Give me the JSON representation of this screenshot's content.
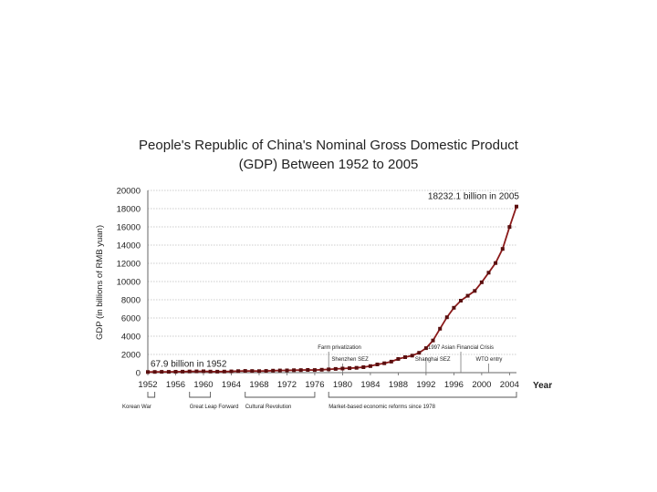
{
  "chart_data": {
    "type": "line",
    "title_line1": "People's Republic of China's Nominal Gross Domestic Product",
    "title_line2": "(GDP) Between 1952 to 2005",
    "xlabel": "Year",
    "ylabel": "GDP (in billions of RMB yuan)",
    "xlim": [
      1952,
      2005
    ],
    "ylim": [
      0,
      20000
    ],
    "x_ticks": [
      1952,
      1956,
      1960,
      1964,
      1968,
      1972,
      1976,
      1980,
      1984,
      1988,
      1992,
      1996,
      2000,
      2004
    ],
    "y_ticks": [
      0,
      2000,
      4000,
      6000,
      8000,
      10000,
      12000,
      14000,
      16000,
      18000,
      20000
    ],
    "grid": "horizontal",
    "series": [
      {
        "color": "#8b1a1a",
        "x": [
          1952,
          1953,
          1954,
          1955,
          1956,
          1957,
          1958,
          1959,
          1960,
          1961,
          1962,
          1963,
          1964,
          1965,
          1966,
          1967,
          1968,
          1969,
          1970,
          1971,
          1972,
          1973,
          1974,
          1975,
          1976,
          1977,
          1978,
          1979,
          1980,
          1981,
          1982,
          1983,
          1984,
          1985,
          1986,
          1987,
          1988,
          1989,
          1990,
          1991,
          1992,
          1993,
          1994,
          1995,
          1996,
          1997,
          1998,
          1999,
          2000,
          2001,
          2002,
          2003,
          2004,
          2005
        ],
        "y": [
          67.9,
          82,
          86,
          91,
          103,
          107,
          131,
          144,
          146,
          122,
          115,
          123,
          145,
          172,
          187,
          177,
          172,
          194,
          225,
          243,
          252,
          272,
          276,
          300,
          294,
          320,
          365,
          406,
          452,
          489,
          532,
          596,
          721,
          902,
          1028,
          1206,
          1504,
          1700,
          1867,
          2178,
          2692,
          3533,
          4820,
          6079,
          7118,
          7897,
          8440,
          8968,
          9921,
          10966,
          12033,
          13582,
          15988,
          18232.1
        ]
      }
    ],
    "annotations": [
      {
        "text": "67.9 billion in 1952",
        "x": 1952,
        "y": 67.9
      },
      {
        "text": "18232.1 billion in 2005",
        "x": 2005,
        "y": 18232.1
      }
    ],
    "events": [
      {
        "text": "Farm privatization",
        "x": 1978
      },
      {
        "text": "Shenzhen SEZ",
        "x": 1980
      },
      {
        "text": "Shanghai SEZ",
        "x": 1992
      },
      {
        "text": "1997 Asian Financial Crisis",
        "x": 1997
      },
      {
        "text": "WTO entry",
        "x": 2001
      }
    ],
    "periods": [
      {
        "text": "Korean War",
        "start": 1952,
        "end": 1953
      },
      {
        "text": "Great Leap Forward",
        "start": 1958,
        "end": 1961
      },
      {
        "text": "Cultural Revolution",
        "start": 1966,
        "end": 1976
      },
      {
        "text": "Market-based economic reforms since 1978",
        "start": 1978,
        "end": 2005
      }
    ]
  }
}
